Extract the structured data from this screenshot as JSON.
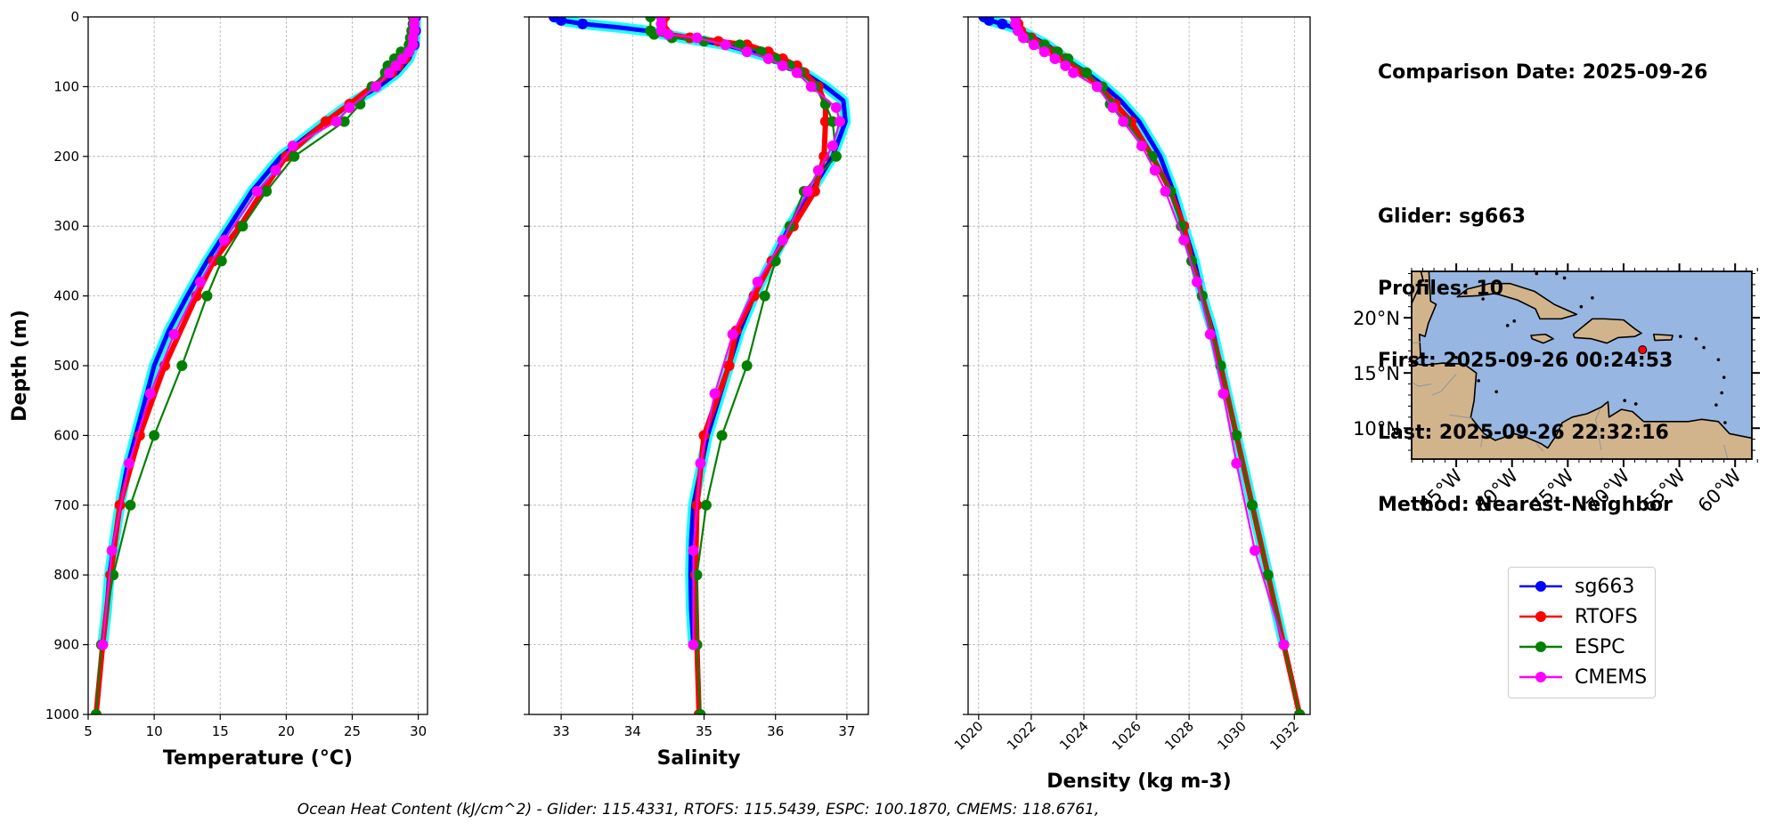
{
  "info": {
    "lines": [
      "Comparison Date: 2025-09-26",
      "",
      "Glider: sg663",
      "Profiles: 10",
      "First: 2025-09-26 00:24:53",
      "Last: 2025-09-26 22:32:16",
      "Method: Nearest-Neighbor"
    ]
  },
  "footer": "Ocean Heat Content (kJ/cm^2) - Glider: 115.4331,  RTOFS: 115.5439,  ESPC: 100.1870,  CMEMS: 118.6761,",
  "legend": [
    {
      "name": "sg663",
      "color": "#0000ff"
    },
    {
      "name": "RTOFS",
      "color": "#ff0000"
    },
    {
      "name": "ESPC",
      "color": "#008000"
    },
    {
      "name": "CMEMS",
      "color": "#ff00ff"
    }
  ],
  "colors": {
    "glider_spread": "#00ffff",
    "land": "#d2b48c",
    "ocean": "#97b6e1",
    "coast": "#000000"
  },
  "map": {
    "lon_ticks": [
      "85°W",
      "80°W",
      "75°W",
      "70°W",
      "65°W",
      "60°W"
    ],
    "lat_ticks": [
      "20°N",
      "15°N",
      "10°N"
    ],
    "glider_marker": {
      "lon": -68.3,
      "lat": 17.1,
      "color": "#ff0000"
    }
  },
  "chart_data": [
    {
      "type": "line",
      "xlabel": "Temperature (°C)",
      "ylabel": "Depth (m)",
      "xlim": [
        5,
        30.7
      ],
      "ylim": [
        1000,
        0
      ],
      "xticks": [
        5,
        10,
        15,
        20,
        25,
        30
      ],
      "yticks": [
        0,
        100,
        200,
        300,
        400,
        500,
        600,
        700,
        800,
        900,
        1000
      ],
      "grid": true,
      "series": [
        {
          "name": "sg663",
          "depth": [
            0,
            20,
            40,
            60,
            80,
            100,
            120,
            150,
            200,
            250,
            300,
            350,
            400,
            450,
            500,
            550,
            600,
            650,
            700,
            750,
            800,
            850,
            900
          ],
          "values": [
            29.8,
            29.8,
            29.7,
            29.3,
            28.4,
            27.0,
            25.2,
            23.0,
            19.6,
            17.4,
            15.7,
            14.0,
            12.5,
            11.1,
            10.0,
            9.3,
            8.6,
            7.9,
            7.4,
            7.0,
            6.6,
            6.4,
            6.1
          ]
        },
        {
          "name": "RTOFS",
          "depth": [
            0,
            10,
            20,
            30,
            40,
            50,
            60,
            70,
            80,
            100,
            125,
            150,
            200,
            250,
            300,
            350,
            400,
            500,
            600,
            700,
            800,
            900,
            1000
          ],
          "values": [
            29.7,
            29.7,
            29.7,
            29.6,
            29.5,
            29.3,
            29.0,
            28.5,
            28.0,
            26.5,
            24.8,
            23.0,
            20.0,
            18.2,
            16.5,
            14.5,
            13.2,
            10.8,
            8.9,
            7.4,
            6.7,
            6.1,
            5.6
          ]
        },
        {
          "name": "ESPC",
          "depth": [
            0,
            10,
            20,
            30,
            40,
            50,
            60,
            70,
            80,
            100,
            125,
            150,
            200,
            250,
            300,
            350,
            400,
            500,
            600,
            700,
            800,
            900,
            1000
          ],
          "values": [
            29.6,
            29.6,
            29.5,
            29.4,
            29.3,
            28.7,
            28.2,
            27.7,
            27.5,
            26.5,
            25.6,
            24.4,
            20.6,
            18.5,
            16.7,
            15.1,
            14.0,
            12.1,
            10.0,
            8.2,
            6.9,
            6.0,
            5.6
          ]
        },
        {
          "name": "CMEMS",
          "depth": [
            0,
            10,
            20,
            30,
            40,
            50,
            60,
            70,
            80,
            100,
            130,
            150,
            185,
            220,
            250,
            320,
            380,
            455,
            540,
            640,
            765,
            900
          ],
          "values": [
            29.7,
            29.7,
            29.7,
            29.6,
            29.6,
            29.3,
            28.8,
            28.3,
            27.8,
            26.8,
            24.8,
            23.8,
            20.5,
            19.2,
            17.8,
            15.3,
            13.5,
            11.5,
            9.7,
            8.1,
            6.8,
            6.1
          ]
        }
      ]
    },
    {
      "type": "line",
      "xlabel": "Salinity",
      "ylabel": "",
      "xlim": [
        32.55,
        37.3
      ],
      "ylim": [
        1000,
        0
      ],
      "xticks": [
        33,
        34,
        35,
        36,
        37
      ],
      "yticks": [
        0,
        100,
        200,
        300,
        400,
        500,
        600,
        700,
        800,
        900,
        1000
      ],
      "grid": true,
      "series": [
        {
          "name": "sg663",
          "depth": [
            0,
            5,
            10,
            15,
            20,
            30,
            40,
            60,
            80,
            100,
            120,
            150,
            200,
            250,
            300,
            350,
            400,
            450,
            500,
            550,
            600,
            650,
            700,
            750,
            800,
            850,
            900
          ],
          "values": [
            32.9,
            33.0,
            33.3,
            33.8,
            34.2,
            34.7,
            35.3,
            36.0,
            36.4,
            36.7,
            36.95,
            36.98,
            36.8,
            36.5,
            36.2,
            35.95,
            35.7,
            35.5,
            35.35,
            35.2,
            35.05,
            34.95,
            34.85,
            34.82,
            34.81,
            34.82,
            34.85
          ]
        },
        {
          "name": "RTOFS",
          "depth": [
            0,
            20,
            25,
            30,
            35,
            40,
            50,
            60,
            70,
            80,
            100,
            125,
            150,
            200,
            250,
            300,
            350,
            400,
            450,
            500,
            600,
            700,
            800,
            900,
            1000
          ],
          "values": [
            34.45,
            34.45,
            34.5,
            34.8,
            35.2,
            35.6,
            35.9,
            36.1,
            36.3,
            36.4,
            36.6,
            36.7,
            36.7,
            36.68,
            36.55,
            36.25,
            35.95,
            35.7,
            35.45,
            35.35,
            35.0,
            34.9,
            34.88,
            34.9,
            34.93
          ]
        },
        {
          "name": "ESPC",
          "depth": [
            0,
            20,
            25,
            30,
            35,
            40,
            50,
            60,
            70,
            80,
            100,
            125,
            150,
            200,
            250,
            300,
            350,
            400,
            500,
            600,
            700,
            800,
            900,
            1000
          ],
          "values": [
            34.25,
            34.25,
            34.3,
            34.55,
            35.0,
            35.5,
            35.8,
            36.0,
            36.2,
            36.35,
            36.55,
            36.7,
            36.8,
            36.85,
            36.4,
            36.2,
            36.0,
            35.85,
            35.6,
            35.25,
            35.03,
            34.9,
            34.9,
            34.95
          ]
        },
        {
          "name": "CMEMS",
          "depth": [
            0,
            10,
            20,
            25,
            30,
            40,
            50,
            60,
            70,
            80,
            100,
            130,
            150,
            185,
            220,
            250,
            320,
            380,
            455,
            540,
            640,
            765,
            900
          ],
          "values": [
            34.4,
            34.4,
            34.4,
            34.5,
            34.9,
            35.3,
            35.6,
            35.9,
            36.1,
            36.3,
            36.5,
            36.85,
            36.9,
            36.8,
            36.6,
            36.45,
            36.1,
            35.75,
            35.4,
            35.15,
            34.95,
            34.85,
            34.85
          ]
        }
      ]
    },
    {
      "type": "line",
      "xlabel": "Density (kg m-3)",
      "ylabel": "",
      "xlim": [
        1019.6,
        1032.6
      ],
      "ylim": [
        1000,
        0
      ],
      "xticks": [
        1020,
        1022,
        1024,
        1026,
        1028,
        1030,
        1032
      ],
      "yticks": [
        0,
        100,
        200,
        300,
        400,
        500,
        600,
        700,
        800,
        900,
        1000
      ],
      "grid": true,
      "series": [
        {
          "name": "sg663",
          "depth": [
            0,
            5,
            10,
            15,
            20,
            30,
            40,
            60,
            80,
            100,
            120,
            150,
            200,
            250,
            300,
            350,
            400,
            450,
            500,
            600,
            700,
            800,
            900
          ],
          "values": [
            1020.2,
            1020.4,
            1020.9,
            1021.3,
            1021.6,
            1022.1,
            1022.6,
            1023.3,
            1024.1,
            1024.8,
            1025.4,
            1026.1,
            1026.9,
            1027.4,
            1027.8,
            1028.2,
            1028.5,
            1028.9,
            1029.2,
            1029.8,
            1030.4,
            1031.0,
            1031.6
          ]
        },
        {
          "name": "RTOFS",
          "depth": [
            0,
            10,
            20,
            30,
            40,
            50,
            60,
            80,
            100,
            125,
            150,
            200,
            250,
            300,
            350,
            400,
            500,
            600,
            700,
            800,
            900,
            1000
          ],
          "values": [
            1021.4,
            1021.5,
            1021.6,
            1022.0,
            1022.5,
            1022.9,
            1023.3,
            1024.0,
            1024.6,
            1025.2,
            1025.8,
            1026.6,
            1027.3,
            1027.8,
            1028.1,
            1028.5,
            1029.2,
            1029.8,
            1030.4,
            1031.0,
            1031.6,
            1032.2
          ]
        },
        {
          "name": "ESPC",
          "depth": [
            0,
            10,
            20,
            30,
            40,
            50,
            60,
            80,
            100,
            125,
            150,
            200,
            250,
            300,
            350,
            400,
            500,
            600,
            700,
            800,
            900,
            1000
          ],
          "values": [
            1021.4,
            1021.4,
            1021.5,
            1021.9,
            1022.5,
            1023.0,
            1023.4,
            1024.1,
            1024.7,
            1025.0,
            1025.6,
            1026.6,
            1027.3,
            1027.7,
            1028.1,
            1028.5,
            1029.2,
            1029.8,
            1030.4,
            1031.0,
            1031.6,
            1032.2
          ]
        },
        {
          "name": "CMEMS",
          "depth": [
            0,
            10,
            20,
            30,
            40,
            50,
            60,
            70,
            80,
            100,
            130,
            150,
            185,
            220,
            250,
            320,
            380,
            455,
            540,
            640,
            765,
            900
          ],
          "values": [
            1021.4,
            1021.4,
            1021.5,
            1021.7,
            1022.1,
            1022.5,
            1022.9,
            1023.3,
            1023.6,
            1024.5,
            1025.1,
            1025.5,
            1026.2,
            1026.7,
            1027.1,
            1027.8,
            1028.3,
            1028.8,
            1029.3,
            1029.8,
            1030.5,
            1031.6
          ]
        }
      ]
    }
  ]
}
